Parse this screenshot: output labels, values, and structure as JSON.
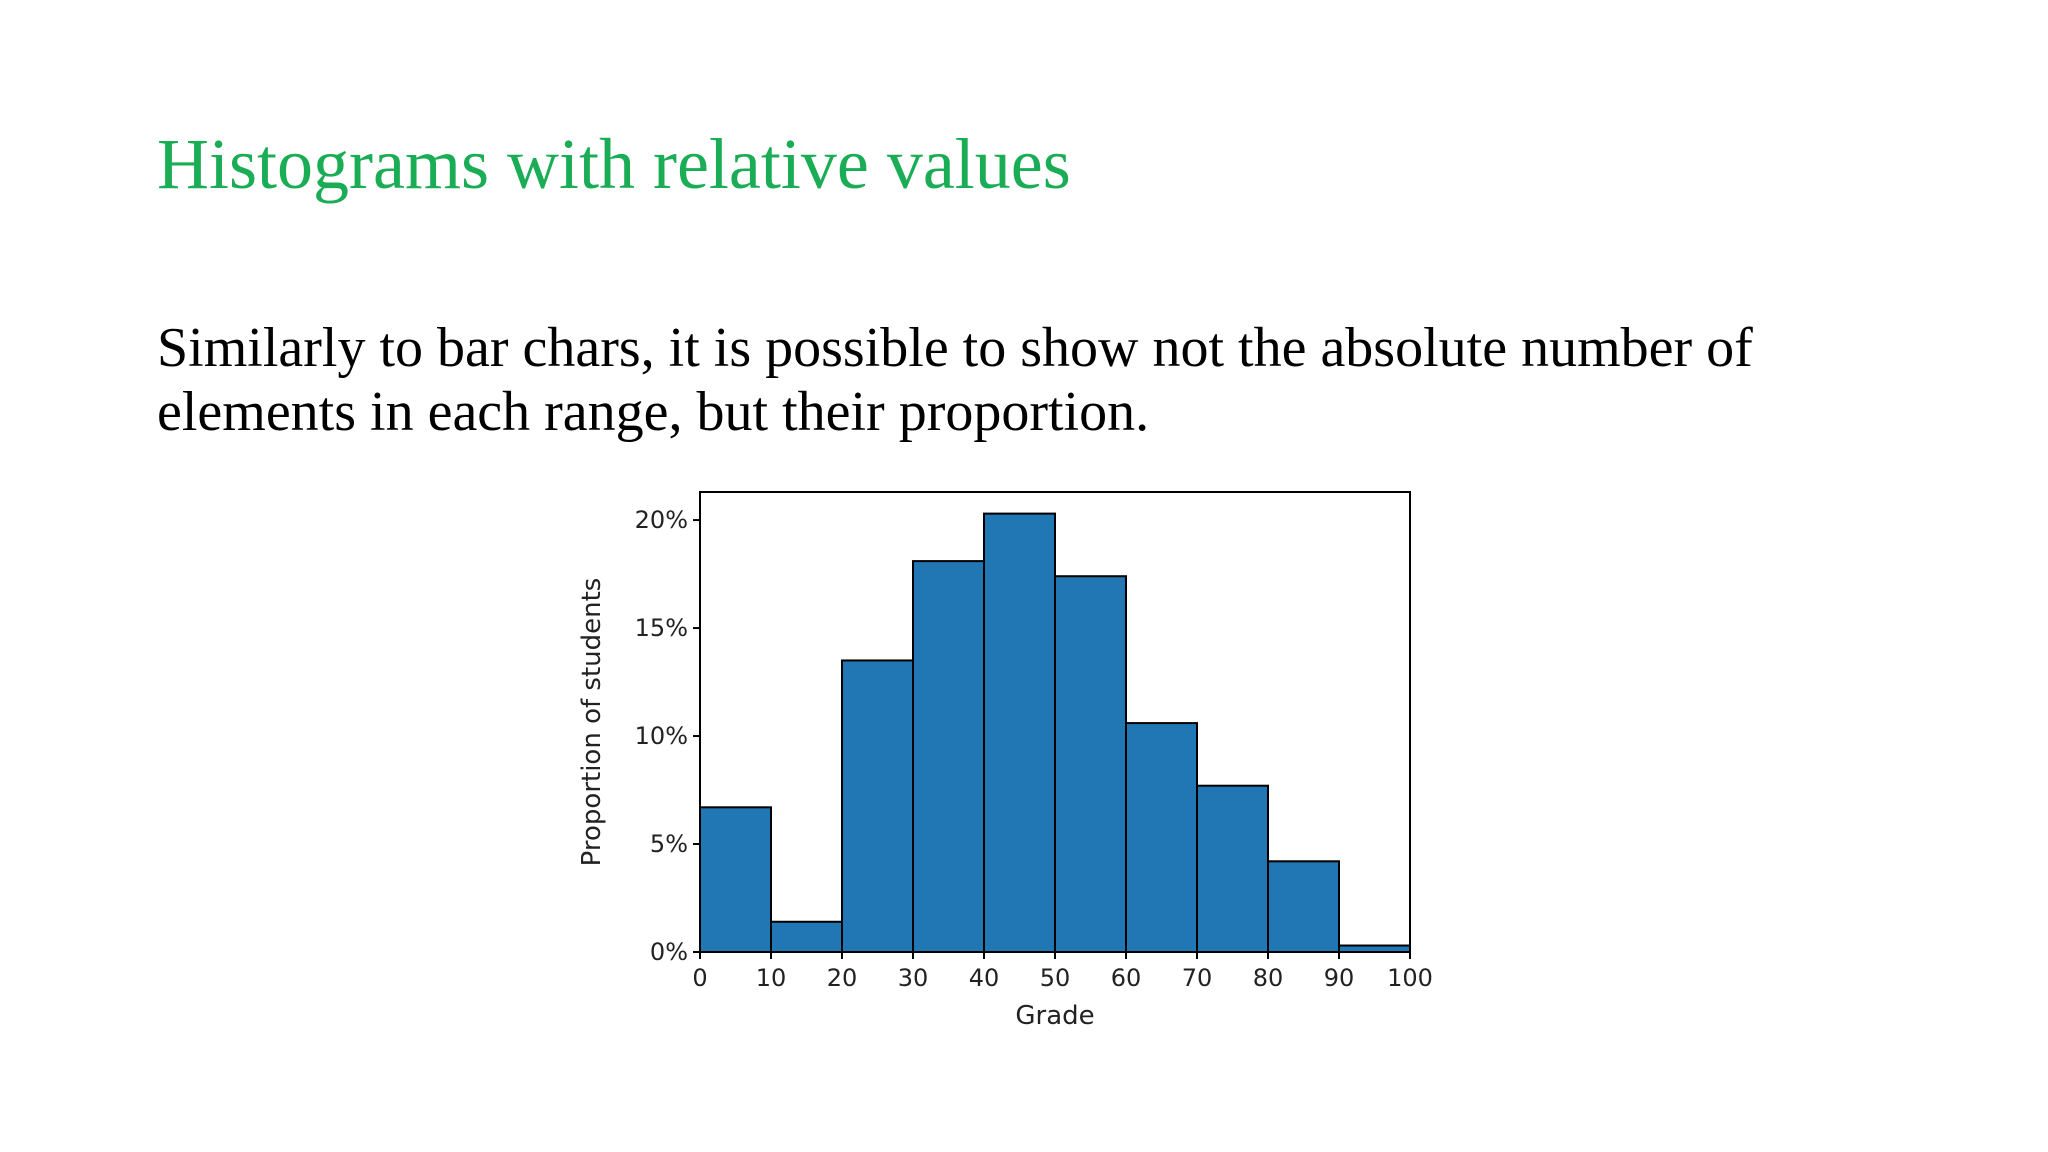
{
  "slide": {
    "title": "Histograms with relative values",
    "body": "Similarly to bar chars, it is possible to show not the absolute number of elements in each range, but their proportion."
  },
  "colors": {
    "title": "#1aad55",
    "bar_fill": "#2077b4",
    "bar_edge": "#000000"
  },
  "chart_data": {
    "type": "bar",
    "histogram": true,
    "bin_edges": [
      0,
      10,
      20,
      30,
      40,
      50,
      60,
      70,
      80,
      90,
      100
    ],
    "values": [
      6.7,
      1.4,
      13.5,
      18.1,
      20.3,
      17.4,
      10.6,
      7.7,
      4.2,
      0.3
    ],
    "value_unit": "%",
    "xlabel": "Grade",
    "ylabel": "Proportion of students",
    "xlim": [
      0,
      100
    ],
    "ylim": [
      0,
      21.3
    ],
    "xticks": [
      "0",
      "10",
      "20",
      "30",
      "40",
      "50",
      "60",
      "70",
      "80",
      "90",
      "100"
    ],
    "yticks": [
      "0%",
      "5%",
      "10%",
      "15%",
      "20%"
    ],
    "ytick_values": [
      0,
      5,
      10,
      15,
      20
    ],
    "grid": false,
    "legend": "none"
  }
}
